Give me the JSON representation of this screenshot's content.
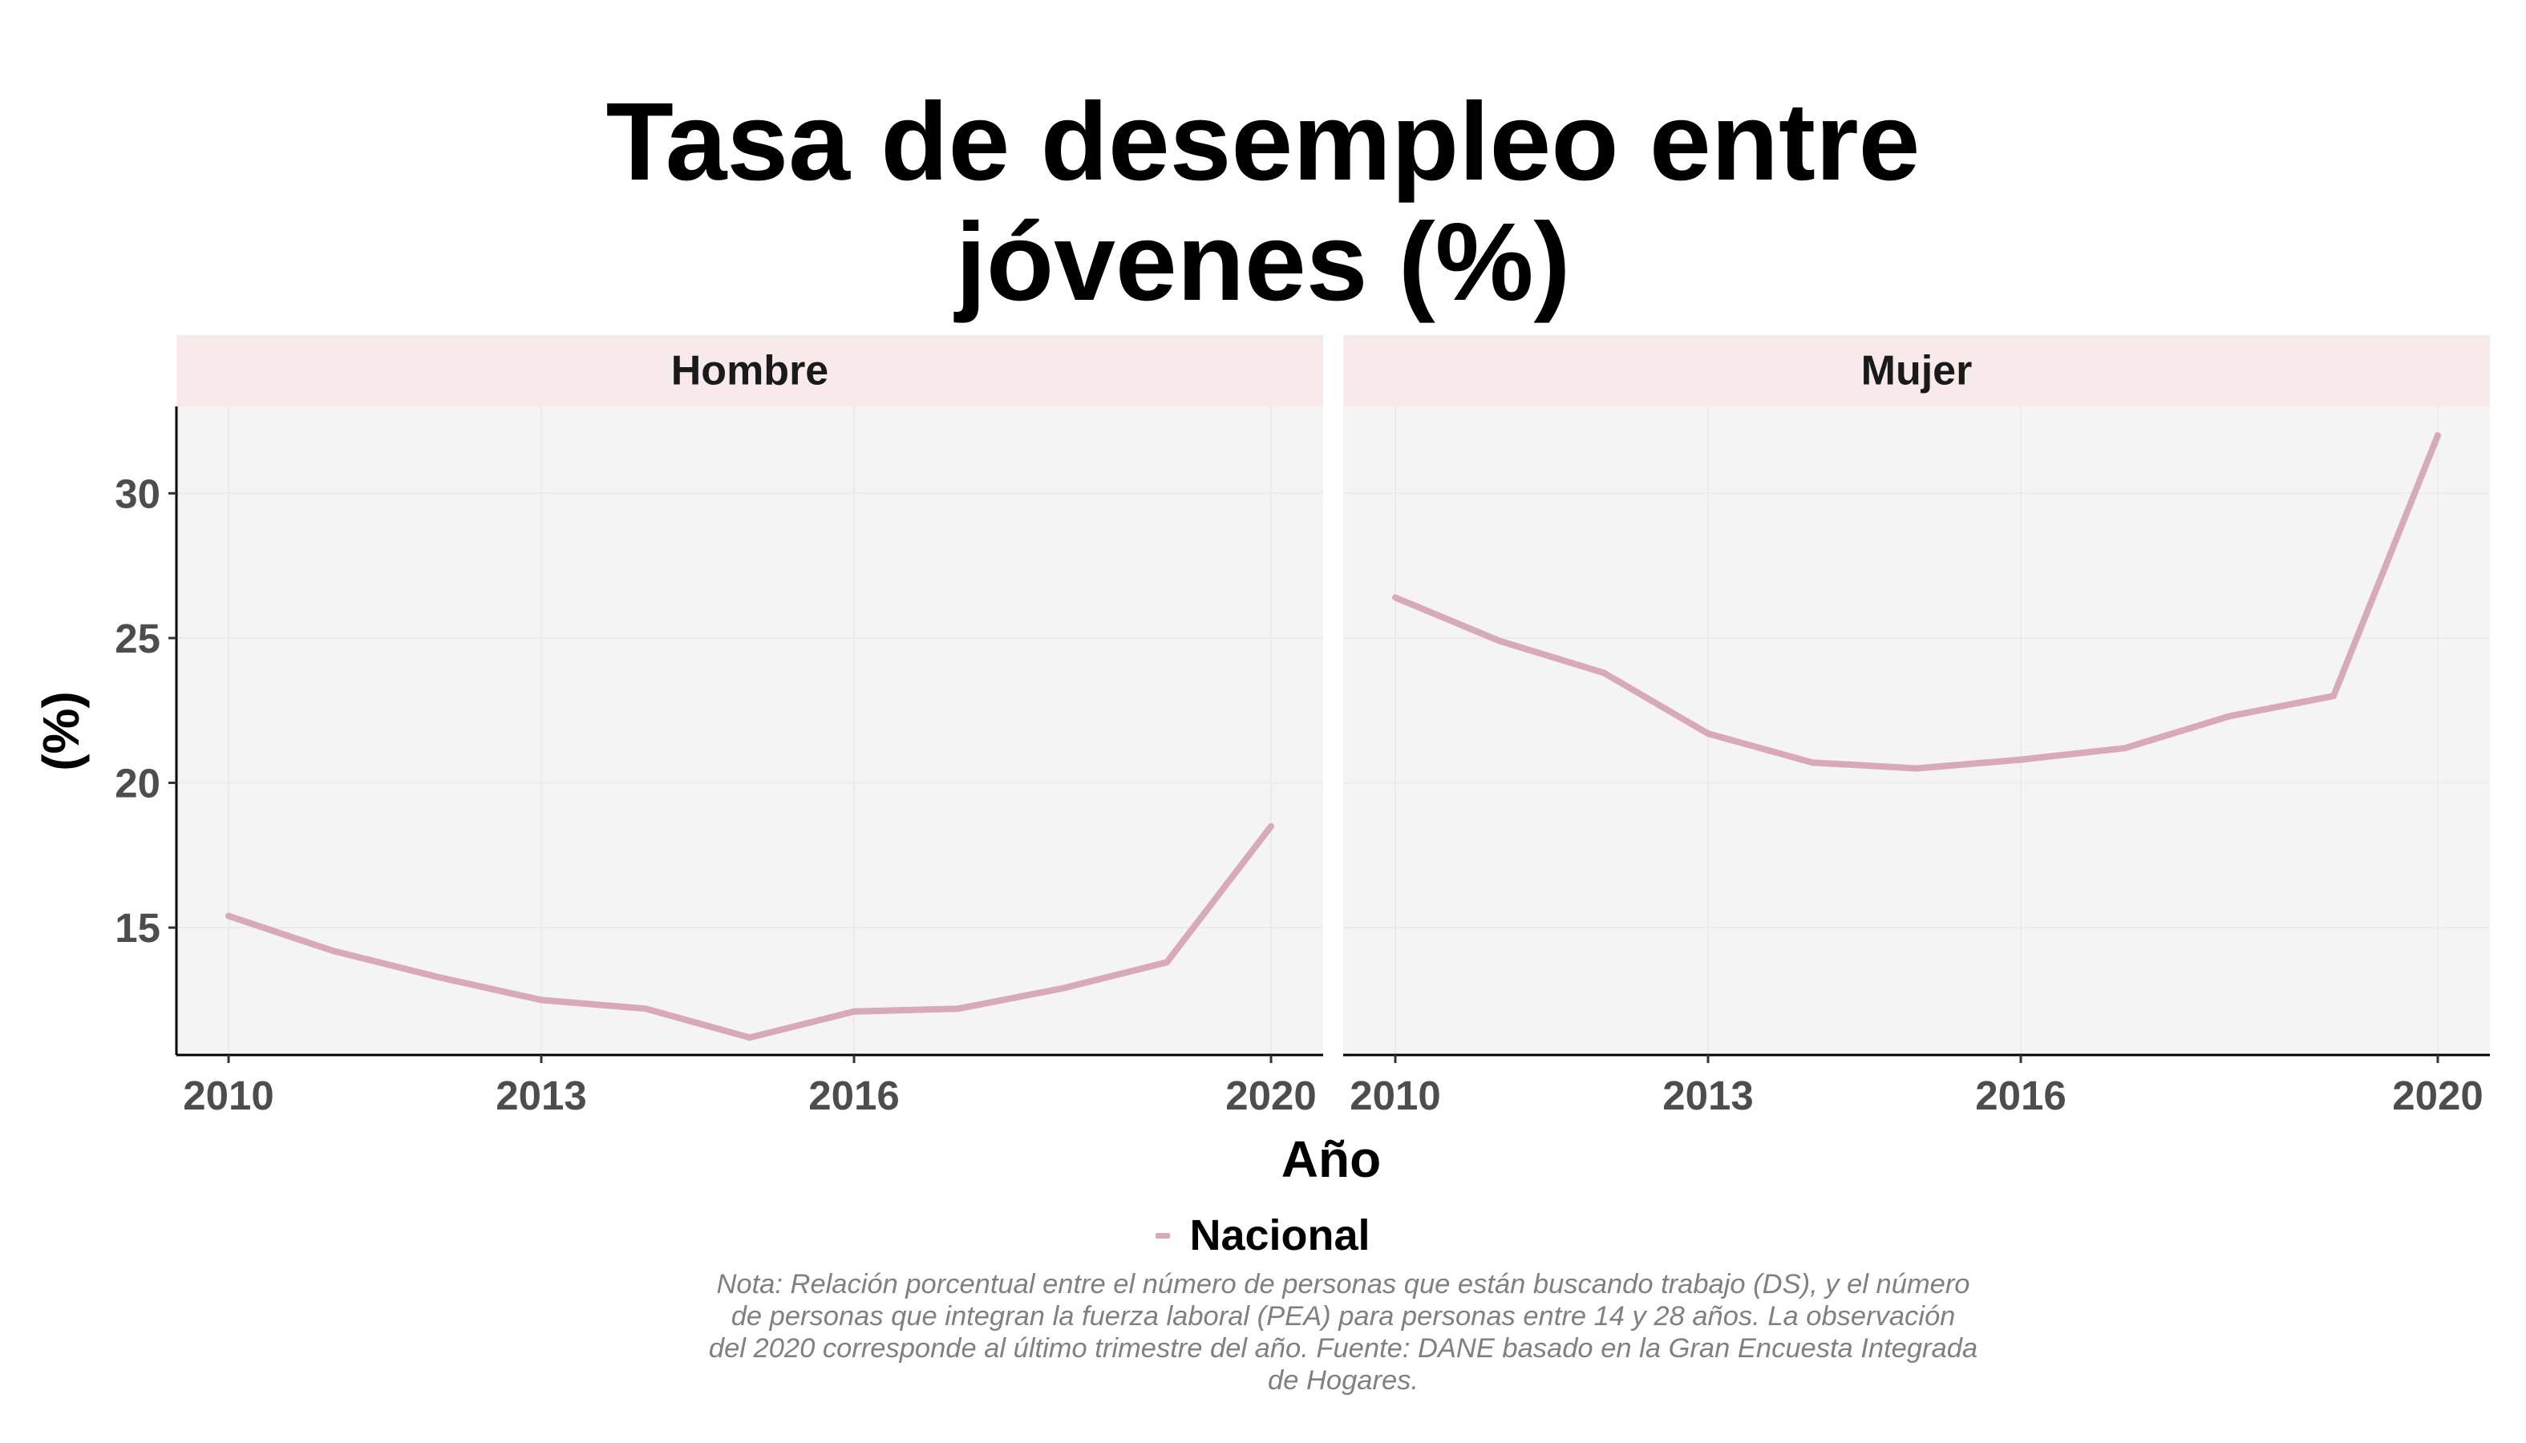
{
  "title_lines": [
    "Tasa de desempleo entre",
    "jóvenes (%)"
  ],
  "xlabel": "Año",
  "ylabel": "(%)",
  "legend": {
    "label": "Nacional"
  },
  "note_lines": [
    "Nota: Relación porcentual entre el número de personas que están buscando trabajo (DS), y el número",
    "de personas que integran la fuerza laboral (PEA) para personas entre 14 y 28 años. La observación",
    "del 2020 corresponde al último trimestre del año. Fuente: DANE basado en la Gran Encuesta Integrada",
    "de Hogares."
  ],
  "colors": {
    "line": "#D8A9B6",
    "strip_bg": "#F8EAEB",
    "panel_bg": "#F4F4F4",
    "grid": "#EBEBEB",
    "tick_text": "#4D4D4D"
  },
  "chart_data": {
    "type": "line",
    "x_ticks": [
      2010,
      2013,
      2016,
      2020
    ],
    "y_ticks": [
      15,
      20,
      25,
      30
    ],
    "xlim": [
      2010,
      2020
    ],
    "ylim": [
      10.6,
      33
    ],
    "grid": true,
    "legend_position": "bottom",
    "panels": [
      {
        "strip": "Hombre",
        "series": [
          {
            "name": "Nacional",
            "x": [
              2010,
              2011,
              2012,
              2013,
              2014,
              2015,
              2016,
              2017,
              2018,
              2019,
              2020
            ],
            "values": [
              15.4,
              14.2,
              13.3,
              12.5,
              12.2,
              11.2,
              12.1,
              12.2,
              12.9,
              13.8,
              18.5
            ]
          }
        ]
      },
      {
        "strip": "Mujer",
        "series": [
          {
            "name": "Nacional",
            "x": [
              2010,
              2011,
              2012,
              2013,
              2014,
              2015,
              2016,
              2017,
              2018,
              2019,
              2020
            ],
            "values": [
              26.4,
              24.9,
              23.8,
              21.7,
              20.7,
              20.5,
              20.8,
              21.2,
              22.3,
              23.0,
              32.0
            ]
          }
        ]
      }
    ]
  }
}
